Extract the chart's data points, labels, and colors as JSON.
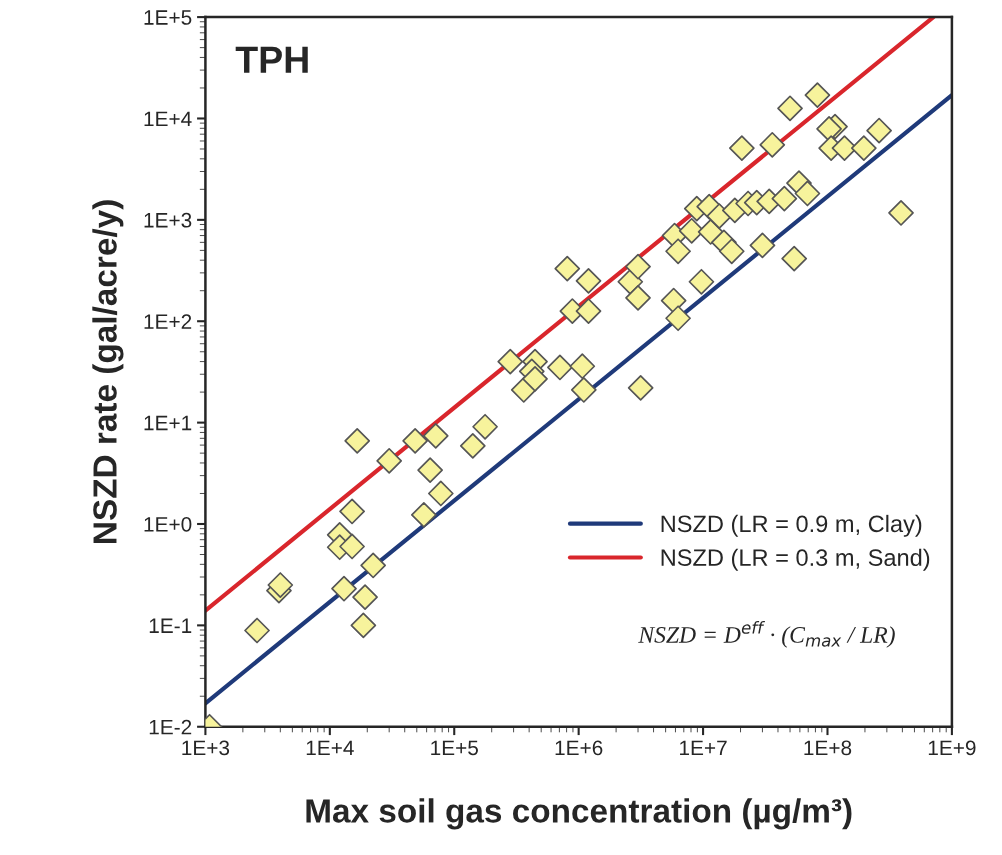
{
  "chart_data": {
    "type": "scatter",
    "title": "TPH",
    "xlabel": "Max soil gas concentration (µg/m³)",
    "ylabel": "NSZD rate (gal/acre/y)",
    "log": "xy",
    "grid": false,
    "legend": "bottom right",
    "xlim": [
      1000,
      1000000000
    ],
    "ylim": [
      0.01,
      100000
    ],
    "xticks": [
      {
        "value": 1000,
        "label": "1E+3"
      },
      {
        "value": 10000,
        "label": "1E+4"
      },
      {
        "value": 100000,
        "label": "1E+5"
      },
      {
        "value": 1000000,
        "label": "1E+6"
      },
      {
        "value": 10000000,
        "label": "1E+7"
      },
      {
        "value": 100000000,
        "label": "1E+8"
      },
      {
        "value": 1000000000,
        "label": "1E+9"
      }
    ],
    "yticks": [
      {
        "value": 0.01,
        "label": "1E-2"
      },
      {
        "value": 0.1,
        "label": "1E-1"
      },
      {
        "value": 1,
        "label": "1E+0"
      },
      {
        "value": 10,
        "label": "1E+1"
      },
      {
        "value": 100,
        "label": "1E+2"
      },
      {
        "value": 1000,
        "label": "1E+3"
      },
      {
        "value": 10000,
        "label": "1E+4"
      },
      {
        "value": 100000,
        "label": "1E+5"
      }
    ],
    "annotations": [
      "NSZD = D$^{eff}$ · (C$_{max}$ / LR)"
    ],
    "series": [
      {
        "marker": "diamond",
        "color": "#f7f39c",
        "x": [
          1080,
          2600,
          3900,
          4000,
          13000,
          19200,
          18600,
          22300,
          12000,
          12000,
          15100,
          15100,
          57000,
          78000,
          64000,
          16600,
          30000,
          48500,
          71000,
          141000,
          177000,
          282000,
          446000,
          420000,
          362000,
          446000,
          707000,
          1070000,
          1100000,
          3150000,
          890000,
          1200000,
          810000,
          1200000,
          2600000,
          3000000,
          3000000,
          5800000,
          6300000,
          9700000,
          5900000,
          6300000,
          8100000,
          11500000,
          14700000,
          17000000,
          8900000,
          11200000,
          13500000,
          18000000,
          23000000,
          27000000,
          34000000,
          45000000,
          59000000,
          69000000,
          30000000,
          54000000,
          20500000,
          36000000,
          50000000,
          83000000,
          115000000,
          103000000,
          107000000,
          137000000,
          196000000,
          260000000,
          390000000
        ],
        "values": [
          0.01,
          0.089,
          0.22,
          0.25,
          0.23,
          0.19,
          0.1,
          0.39,
          0.78,
          0.59,
          0.6,
          1.33,
          1.23,
          2.0,
          3.4,
          6.6,
          4.2,
          6.6,
          7.4,
          5.9,
          9.1,
          40,
          40,
          32,
          21,
          27,
          35,
          36,
          21,
          22,
          126,
          126,
          330,
          250,
          245,
          345,
          170,
          160,
          107,
          245,
          700,
          490,
          780,
          760,
          600,
          490,
          1290,
          1350,
          1090,
          1240,
          1450,
          1480,
          1520,
          1620,
          2300,
          1820,
          560,
          415,
          5100,
          5500,
          12600,
          17000,
          8300,
          7900,
          5100,
          5100,
          5100,
          7600,
          1170
        ]
      },
      {
        "type": "line",
        "name": "NSZD (LR = 0.9 m, Clay)",
        "color": "#1f3a7a",
        "x": [
          1000,
          1000000000
        ],
        "values": [
          0.017,
          17000
        ]
      },
      {
        "type": "line",
        "name": "NSZD (LR = 0.3 m, Sand)",
        "color": "#d9262c",
        "x": [
          1000,
          710000000
        ],
        "values": [
          0.14,
          100000
        ]
      }
    ]
  }
}
